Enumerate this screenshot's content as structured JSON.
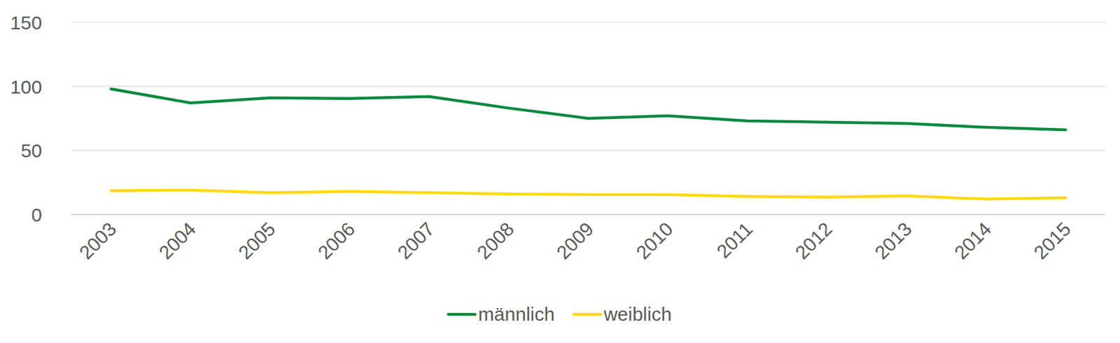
{
  "chart_data": {
    "type": "line",
    "categories": [
      "2003",
      "2004",
      "2005",
      "2006",
      "2007",
      "2008",
      "2009",
      "2010",
      "2011",
      "2012",
      "2013",
      "2014",
      "2015"
    ],
    "series": [
      {
        "name": "männlich",
        "color": "#0b8a3f",
        "values": [
          98,
          87,
          91,
          90.5,
          92,
          83,
          75,
          77,
          73,
          72,
          71,
          68,
          66
        ]
      },
      {
        "name": "weiblich",
        "color": "#ffd912",
        "values": [
          18.5,
          19,
          17,
          18,
          17,
          16,
          15.5,
          15.5,
          14,
          13.5,
          14.5,
          12,
          13
        ]
      }
    ],
    "ylim": [
      0,
      150
    ],
    "yticks": [
      0,
      50,
      100,
      150
    ],
    "grid": true,
    "legend": "bottom"
  }
}
